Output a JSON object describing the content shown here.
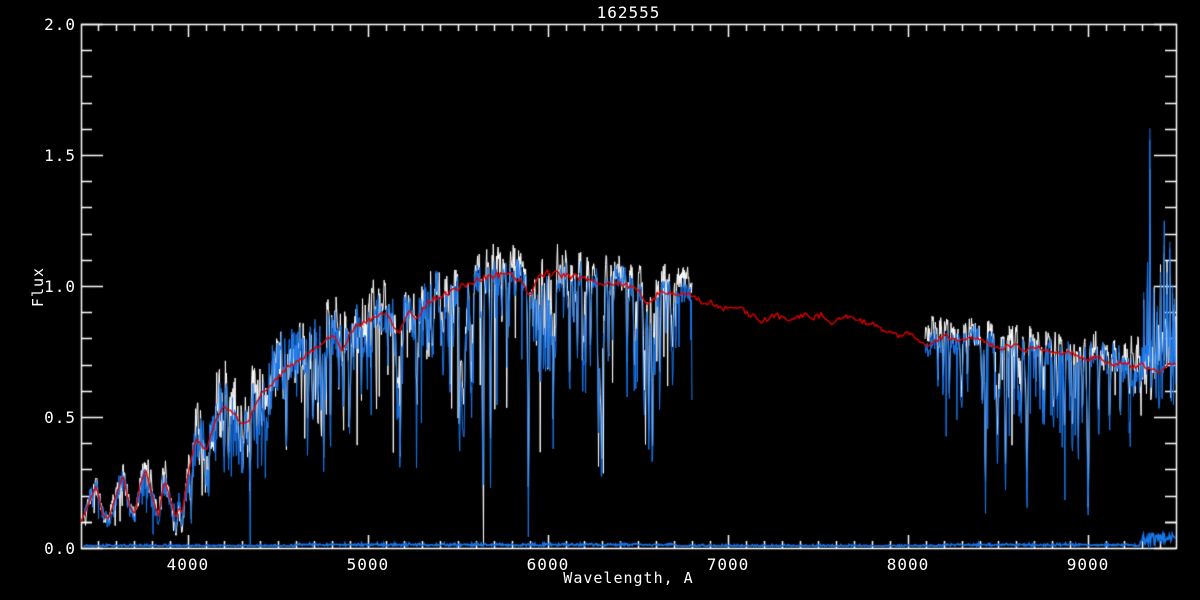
{
  "chart_data": {
    "type": "line",
    "title": "162555",
    "xlabel": "Wavelength, A",
    "ylabel": "Flux",
    "xlim": [
      3406,
      9489
    ],
    "ylim": [
      0.0,
      2.0
    ],
    "x_ticks": [
      4000,
      5000,
      6000,
      7000,
      8000,
      9000
    ],
    "x_tick_labels": [
      "4000",
      "5000",
      "6000",
      "7000",
      "8000",
      "9000"
    ],
    "x_minor_step": 100,
    "y_ticks": [
      0.0,
      0.5,
      1.0,
      1.5,
      2.0
    ],
    "y_tick_labels": [
      "0.0",
      "0.5",
      "1.0",
      "1.5",
      "2.0"
    ],
    "y_minor_step": 0.1,
    "grid": false,
    "legend": null,
    "colors": {
      "background": "#000000",
      "axis": "#ffffff",
      "observed": "#1876eb",
      "reference": "#ffffff",
      "model": "#e00000"
    },
    "continuum": [
      [
        3406,
        0.1
      ],
      [
        3450,
        0.17
      ],
      [
        3490,
        0.24
      ],
      [
        3525,
        0.13
      ],
      [
        3560,
        0.11
      ],
      [
        3600,
        0.2
      ],
      [
        3640,
        0.28
      ],
      [
        3675,
        0.16
      ],
      [
        3705,
        0.13
      ],
      [
        3735,
        0.24
      ],
      [
        3765,
        0.3
      ],
      [
        3800,
        0.2
      ],
      [
        3835,
        0.12
      ],
      [
        3870,
        0.26
      ],
      [
        3905,
        0.18
      ],
      [
        3933,
        0.11
      ],
      [
        3950,
        0.16
      ],
      [
        3968,
        0.13
      ],
      [
        4000,
        0.28
      ],
      [
        4045,
        0.42
      ],
      [
        4101,
        0.37
      ],
      [
        4150,
        0.48
      ],
      [
        4200,
        0.54
      ],
      [
        4250,
        0.52
      ],
      [
        4305,
        0.47
      ],
      [
        4340,
        0.49
      ],
      [
        4400,
        0.58
      ],
      [
        4455,
        0.62
      ],
      [
        4500,
        0.65
      ],
      [
        4550,
        0.69
      ],
      [
        4600,
        0.71
      ],
      [
        4650,
        0.73
      ],
      [
        4700,
        0.76
      ],
      [
        4760,
        0.79
      ],
      [
        4820,
        0.81
      ],
      [
        4861,
        0.75
      ],
      [
        4900,
        0.82
      ],
      [
        4950,
        0.85
      ],
      [
        5000,
        0.87
      ],
      [
        5060,
        0.89
      ],
      [
        5110,
        0.89
      ],
      [
        5170,
        0.82
      ],
      [
        5230,
        0.91
      ],
      [
        5270,
        0.87
      ],
      [
        5330,
        0.94
      ],
      [
        5400,
        0.96
      ],
      [
        5460,
        0.98
      ],
      [
        5530,
        1.0
      ],
      [
        5600,
        1.02
      ],
      [
        5700,
        1.04
      ],
      [
        5780,
        1.05
      ],
      [
        5850,
        1.02
      ],
      [
        5893,
        0.96
      ],
      [
        5950,
        1.04
      ],
      [
        6000,
        1.05
      ],
      [
        6100,
        1.04
      ],
      [
        6200,
        1.03
      ],
      [
        6300,
        1.01
      ],
      [
        6400,
        1.01
      ],
      [
        6490,
        0.99
      ],
      [
        6563,
        0.93
      ],
      [
        6620,
        0.98
      ],
      [
        6700,
        0.97
      ],
      [
        6800,
        0.965
      ],
      [
        6850,
        0.95
      ],
      [
        6870,
        0.92
      ],
      [
        6900,
        0.94
      ],
      [
        6950,
        0.92
      ],
      [
        7000,
        0.91
      ],
      [
        7050,
        0.92
      ],
      [
        7100,
        0.9
      ],
      [
        7150,
        0.88
      ],
      [
        7185,
        0.86
      ],
      [
        7230,
        0.88
      ],
      [
        7270,
        0.89
      ],
      [
        7320,
        0.87
      ],
      [
        7380,
        0.88
      ],
      [
        7430,
        0.89
      ],
      [
        7480,
        0.88
      ],
      [
        7520,
        0.89
      ],
      [
        7570,
        0.86
      ],
      [
        7610,
        0.88
      ],
      [
        7660,
        0.88
      ],
      [
        7710,
        0.87
      ],
      [
        7760,
        0.86
      ],
      [
        7810,
        0.86
      ],
      [
        7860,
        0.83
      ],
      [
        7910,
        0.82
      ],
      [
        7960,
        0.81
      ],
      [
        8010,
        0.82
      ],
      [
        8060,
        0.79
      ],
      [
        8110,
        0.77
      ],
      [
        8150,
        0.79
      ],
      [
        8200,
        0.81
      ],
      [
        8250,
        0.8
      ],
      [
        8300,
        0.79
      ],
      [
        8350,
        0.8
      ],
      [
        8400,
        0.79
      ],
      [
        8450,
        0.78
      ],
      [
        8500,
        0.76
      ],
      [
        8550,
        0.77
      ],
      [
        8600,
        0.78
      ],
      [
        8650,
        0.75
      ],
      [
        8700,
        0.77
      ],
      [
        8750,
        0.76
      ],
      [
        8800,
        0.75
      ],
      [
        8850,
        0.74
      ],
      [
        8900,
        0.75
      ],
      [
        8950,
        0.73
      ],
      [
        9000,
        0.72
      ],
      [
        9050,
        0.73
      ],
      [
        9100,
        0.71
      ],
      [
        9150,
        0.7
      ],
      [
        9200,
        0.71
      ],
      [
        9250,
        0.69
      ],
      [
        9300,
        0.7
      ],
      [
        9350,
        0.68
      ],
      [
        9400,
        0.67
      ],
      [
        9450,
        0.71
      ],
      [
        9489,
        0.7
      ]
    ],
    "noise_envelope": [
      [
        3406,
        0.26
      ],
      [
        3900,
        0.3
      ],
      [
        4300,
        0.3
      ],
      [
        4500,
        0.22
      ],
      [
        4700,
        0.16
      ],
      [
        5000,
        0.14
      ],
      [
        5300,
        0.11
      ],
      [
        5600,
        0.08
      ],
      [
        6000,
        0.07
      ],
      [
        6500,
        0.06
      ],
      [
        6800,
        0.06
      ],
      [
        8095,
        0.08
      ],
      [
        8600,
        0.07
      ],
      [
        9000,
        0.09
      ],
      [
        9250,
        0.12
      ],
      [
        9350,
        0.22
      ],
      [
        9489,
        0.26
      ]
    ],
    "absorption_lines": [
      [
        3933,
        0.4,
        6
      ],
      [
        3968,
        0.35,
        6
      ],
      [
        4101,
        0.32,
        5
      ],
      [
        4226,
        0.3,
        4
      ],
      [
        4305,
        0.25,
        8
      ],
      [
        4340,
        0.3,
        5
      ],
      [
        4383,
        0.28,
        4
      ],
      [
        4455,
        0.22,
        4
      ],
      [
        4531,
        0.2,
        4
      ],
      [
        4668,
        0.22,
        4
      ],
      [
        4755,
        0.18,
        4
      ],
      [
        4861,
        0.35,
        5
      ],
      [
        4920,
        0.2,
        4
      ],
      [
        5015,
        0.2,
        4
      ],
      [
        5110,
        0.22,
        4
      ],
      [
        5180,
        0.62,
        5
      ],
      [
        5270,
        0.3,
        5
      ],
      [
        5328,
        0.22,
        4
      ],
      [
        5405,
        0.2,
        4
      ],
      [
        5445,
        0.18,
        3
      ],
      [
        5530,
        0.18,
        4
      ],
      [
        5625,
        0.15,
        3
      ],
      [
        5710,
        0.16,
        3
      ],
      [
        5785,
        0.15,
        3
      ],
      [
        5890,
        0.6,
        5
      ],
      [
        6020,
        0.15,
        3
      ],
      [
        6122,
        0.22,
        4
      ],
      [
        6165,
        0.18,
        3
      ],
      [
        6280,
        0.58,
        4
      ],
      [
        6360,
        0.2,
        4
      ],
      [
        6495,
        0.25,
        4
      ],
      [
        6560,
        0.55,
        5
      ],
      [
        6625,
        0.18,
        3
      ],
      [
        6710,
        0.22,
        4
      ],
      [
        8195,
        0.28,
        4
      ],
      [
        8230,
        0.3,
        4
      ],
      [
        8330,
        0.28,
        4
      ],
      [
        8430,
        0.3,
        4
      ],
      [
        8498,
        0.45,
        5
      ],
      [
        8542,
        0.72,
        6
      ],
      [
        8590,
        0.28,
        4
      ],
      [
        8620,
        0.25,
        3
      ],
      [
        8662,
        0.62,
        6
      ],
      [
        8710,
        0.25,
        3
      ],
      [
        8750,
        0.38,
        4
      ],
      [
        8810,
        0.32,
        4
      ],
      [
        8870,
        0.45,
        5
      ],
      [
        8930,
        0.38,
        4
      ],
      [
        9000,
        0.62,
        7
      ],
      [
        9060,
        0.5,
        5
      ],
      [
        9120,
        0.38,
        4
      ],
      [
        9180,
        0.32,
        4
      ],
      [
        9230,
        0.28,
        4
      ]
    ],
    "emission_lines": [
      [
        9310,
        0.28,
        2.5
      ],
      [
        9330,
        0.35,
        2.5
      ],
      [
        9344,
        0.92,
        2.5
      ],
      [
        9365,
        0.3,
        2.5
      ],
      [
        9385,
        0.25,
        2.5
      ],
      [
        9404,
        0.38,
        2.5
      ],
      [
        9424,
        0.55,
        2.5
      ],
      [
        9440,
        0.35,
        2.5
      ],
      [
        9455,
        0.46,
        2.5
      ],
      [
        9470,
        0.3,
        2.5
      ],
      [
        9480,
        0.25,
        2.5
      ]
    ],
    "random_line_params": {
      "seed": 7,
      "regions": [
        {
          "count": 110,
          "range": [
            3950,
            6790
          ],
          "depth": [
            0.08,
            0.45
          ],
          "sigma": [
            2.5,
            6
          ]
        },
        {
          "count": 26,
          "range": [
            8160,
            9280
          ],
          "depth": [
            0.1,
            0.4
          ],
          "sigma": [
            2.5,
            6
          ]
        }
      ],
      "spike_prob": 0.025,
      "spike_depth": [
        0.15,
        0.55
      ]
    },
    "series": [
      {
        "name": "reference-spectrum",
        "color_key": "reference",
        "kind": "noisy",
        "segments": [
          [
            3425,
            6800
          ],
          [
            8095,
            9489
          ]
        ],
        "scale": 1.04,
        "line_depth_scale": 0.85,
        "emission_scale": 0.8,
        "seed": 23,
        "step": 3,
        "line_width": 1
      },
      {
        "name": "observed-spectrum",
        "color_key": "observed",
        "kind": "noisy",
        "segments": [
          [
            3425,
            6800
          ],
          [
            8095,
            9489
          ]
        ],
        "scale": 1.0,
        "line_depth_scale": 1.0,
        "emission_scale": 1.0,
        "seed": 11,
        "step": 3,
        "line_width": 1
      },
      {
        "name": "sky-baseline",
        "color_key": "observed",
        "kind": "baseline",
        "range": [
          3420,
          9489
        ],
        "level": 0.007,
        "noise": 0.008,
        "seed": 13,
        "step": 4,
        "line_width": 1.6,
        "bumps": [
          [
            4600,
            6700,
            0.007
          ],
          [
            8200,
            9250,
            0.006
          ],
          [
            9290,
            9489,
            0.05
          ]
        ]
      },
      {
        "name": "model-fit",
        "color_key": "model",
        "kind": "smooth",
        "range": [
          3406,
          9489
        ],
        "jitter": 0.012,
        "seed": 5,
        "step": 10,
        "line_width": 1.4
      }
    ]
  }
}
